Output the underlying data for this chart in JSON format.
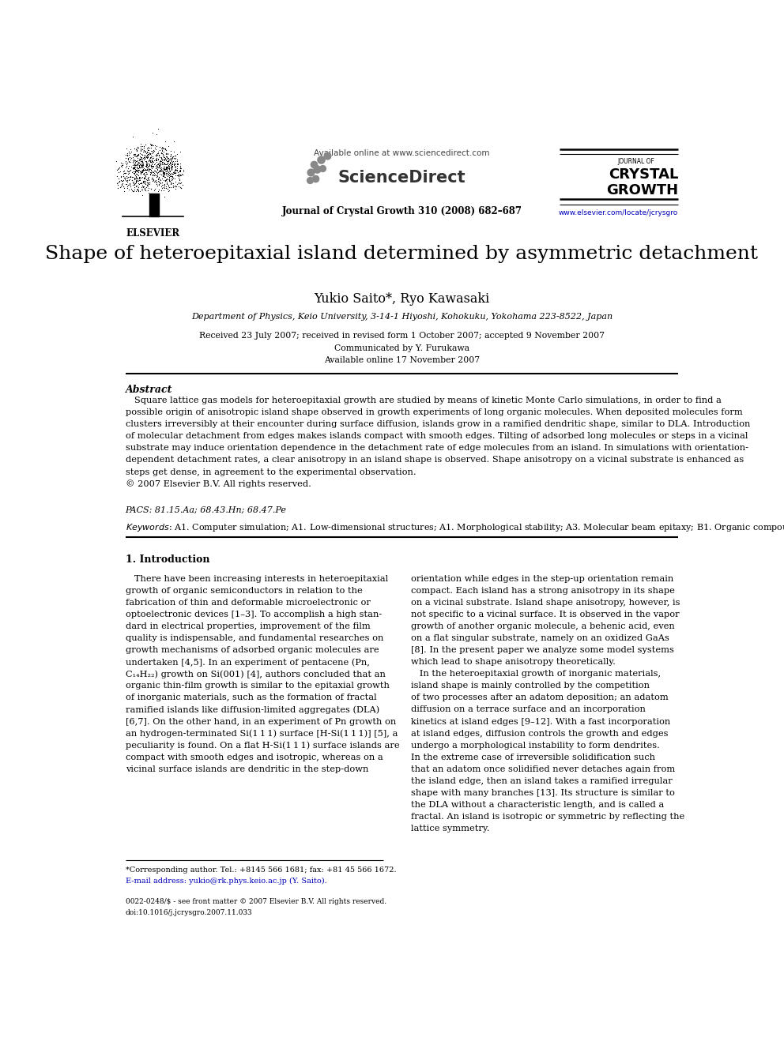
{
  "page_width": 9.92,
  "page_height": 13.23,
  "bg_color": "#ffffff",
  "available_online_text": "Available online at www.sciencedirect.com",
  "sciencedirect_text": "ScienceDirect",
  "journal_citation": "Journal of Crystal Growth 310 (2008) 682–687",
  "journal_of": "JOURNAL OF",
  "crystal": "CRYSTAL",
  "growth": "GROWTH",
  "elsevier_label": "ELSEVIER",
  "website": "www.elsevier.com/locate/jcrysgro",
  "title": "Shape of heteroepitaxial island determined by asymmetric detachment",
  "authors": "Yukio Saito*, Ryo Kawasaki",
  "affiliation": "Department of Physics, Keio University, 3-14-1 Hiyoshi, Kohokuku, Yokohama 223-8522, Japan",
  "dates": "Received 23 July 2007; received in revised form 1 October 2007; accepted 9 November 2007",
  "communicated": "Communicated by Y. Furukawa",
  "available_online_paper": "Available online 17 November 2007",
  "abstract_label": "Abstract",
  "pacs": "PACS: 81.15.Aa; 68.43.Hn; 68.47.Pe",
  "footnote_star": "*Corresponding author. Tel.: +8145 566 1681; fax: +81 45 566 1672.",
  "footnote_email": "E-mail address: yukio@rk.phys.keio.ac.jp (Y. Saito).",
  "bottom_line1": "0022-0248/$ - see front matter © 2007 Elsevier B.V. All rights reserved.",
  "bottom_line2": "doi:10.1016/j.jcrysgro.2007.11.033",
  "section1_title": "1. Introduction",
  "abstract_lines": [
    "   Square lattice gas models for heteroepitaxial growth are studied by means of kinetic Monte Carlo simulations, in order to find a",
    "possible origin of anisotropic island shape observed in growth experiments of long organic molecules. When deposited molecules form",
    "clusters irreversibly at their encounter during surface diffusion, islands grow in a ramified dendritic shape, similar to DLA. Introduction",
    "of molecular detachment from edges makes islands compact with smooth edges. Tilting of adsorbed long molecules or steps in a vicinal",
    "substrate may induce orientation dependence in the detachment rate of edge molecules from an island. In simulations with orientation-",
    "dependent detachment rates, a clear anisotropy in an island shape is observed. Shape anisotropy on a vicinal substrate is enhanced as",
    "steps get dense, in agreement to the experimental observation.",
    "© 2007 Elsevier B.V. All rights reserved."
  ],
  "col1_lines": [
    "   There have been increasing interests in heteroepitaxial",
    "growth of organic semiconductors in relation to the",
    "fabrication of thin and deformable microelectronic or",
    "optoelectronic devices [1–3]. To accomplish a high stan-",
    "dard in electrical properties, improvement of the film",
    "quality is indispensable, and fundamental researches on",
    "growth mechanisms of adsorbed organic molecules are",
    "undertaken [4,5]. In an experiment of pentacene (Pn,",
    "C₁₄H₂₂) growth on Si(001) [4], authors concluded that an",
    "organic thin-film growth is similar to the epitaxial growth",
    "of inorganic materials, such as the formation of fractal",
    "ramified islands like diffusion-limited aggregates (DLA)",
    "[6,7]. On the other hand, in an experiment of Pn growth on",
    "an hydrogen-terminated Si(1 1 1) surface [H-Si(1 1 1)] [5], a",
    "peculiarity is found. On a flat H-Si(1 1 1) surface islands are",
    "compact with smooth edges and isotropic, whereas on a",
    "vicinal surface islands are dendritic in the step-down"
  ],
  "col2_lines": [
    "orientation while edges in the step-up orientation remain",
    "compact. Each island has a strong anisotropy in its shape",
    "on a vicinal substrate. Island shape anisotropy, however, is",
    "not specific to a vicinal surface. It is observed in the vapor",
    "growth of another organic molecule, a behenic acid, even",
    "on a flat singular substrate, namely on an oxidized GaAs",
    "[8]. In the present paper we analyze some model systems",
    "which lead to shape anisotropy theoretically.",
    "   In the heteroepitaxial growth of inorganic materials,",
    "island shape is mainly controlled by the competition",
    "of two processes after an adatom deposition; an adatom",
    "diffusion on a terrace surface and an incorporation",
    "kinetics at island edges [9–12]. With a fast incorporation",
    "at island edges, diffusion controls the growth and edges",
    "undergo a morphological instability to form dendrites.",
    "In the extreme case of irreversible solidification such",
    "that an adatom once solidified never detaches again from",
    "the island edge, then an island takes a ramified irregular",
    "shape with many branches [13]. Its structure is similar to",
    "the DLA without a characteristic length, and is called a",
    "fractal. An island is isotropic or symmetric by reflecting the",
    "lattice symmetry."
  ]
}
